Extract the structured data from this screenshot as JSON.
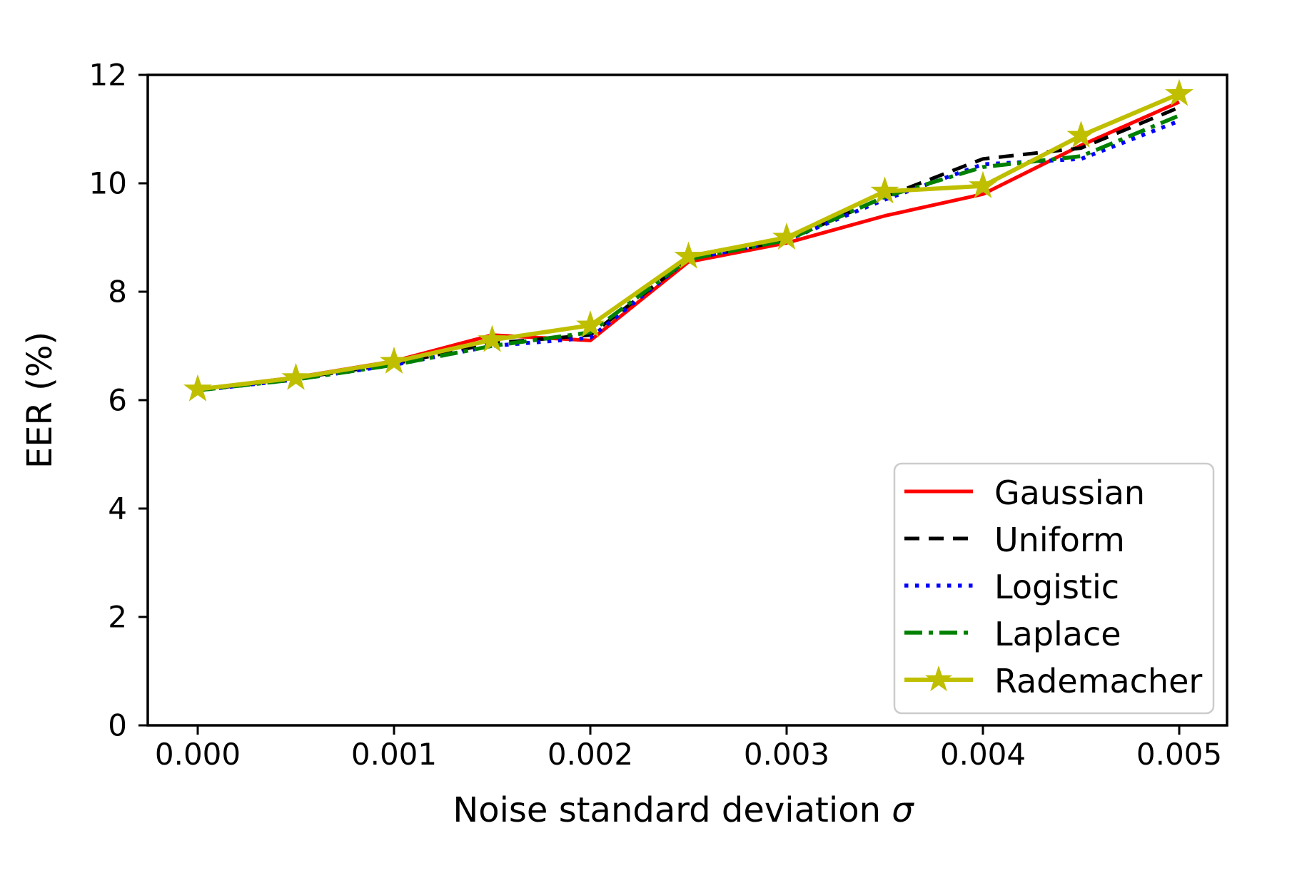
{
  "figure": {
    "background": "#ffffff",
    "frame_color": "#000000"
  },
  "chart_data": {
    "type": "line",
    "xlabel": "Noise standard deviation σ",
    "xlabel_main": "Noise standard deviation ",
    "xlabel_symbol": "σ",
    "ylabel": "EER (%)",
    "grid": false,
    "legend_position": "lower right",
    "xlim": [
      -0.00025,
      0.00525
    ],
    "ylim": [
      0,
      12
    ],
    "xticks": {
      "values": [
        0.0,
        0.001,
        0.002,
        0.003,
        0.004,
        0.005
      ],
      "labels": [
        "0.000",
        "0.001",
        "0.002",
        "0.003",
        "0.004",
        "0.005"
      ]
    },
    "yticks": {
      "values": [
        0,
        2,
        4,
        6,
        8,
        10,
        12
      ],
      "labels": [
        "0",
        "2",
        "4",
        "6",
        "8",
        "10",
        "12"
      ]
    },
    "x": [
      0.0,
      0.0005,
      0.001,
      0.0015,
      0.002,
      0.0025,
      0.003,
      0.0035,
      0.004,
      0.0045,
      0.005
    ],
    "series": [
      {
        "name": "Gaussian",
        "color": "#ff0000",
        "line_style": "solid",
        "line_width": 5,
        "marker": "none",
        "values": [
          6.2,
          6.42,
          6.72,
          7.2,
          7.1,
          8.55,
          8.9,
          9.4,
          9.8,
          10.7,
          11.5
        ]
      },
      {
        "name": "Uniform",
        "color": "#000000",
        "line_style": "dashed",
        "line_width": 5,
        "marker": "none",
        "values": [
          6.18,
          6.4,
          6.67,
          7.05,
          7.2,
          8.6,
          8.95,
          9.75,
          10.45,
          10.65,
          11.4
        ]
      },
      {
        "name": "Logistic",
        "color": "#0000ff",
        "line_style": "dotted",
        "line_width": 5.5,
        "marker": "none",
        "values": [
          6.18,
          6.38,
          6.65,
          7.0,
          7.15,
          8.6,
          8.95,
          9.7,
          10.35,
          10.45,
          11.15
        ]
      },
      {
        "name": "Laplace",
        "color": "#008000",
        "line_style": "dashdot",
        "line_width": 5.5,
        "marker": "none",
        "values": [
          6.18,
          6.38,
          6.65,
          7.0,
          7.25,
          8.6,
          8.95,
          9.75,
          10.3,
          10.5,
          11.25
        ]
      },
      {
        "name": "Rademacher",
        "color": "#bfbf00",
        "line_style": "solid",
        "line_width": 6,
        "marker": "star",
        "values": [
          6.2,
          6.41,
          6.71,
          7.11,
          7.38,
          8.65,
          9.0,
          9.85,
          9.95,
          10.88,
          11.65
        ]
      }
    ]
  }
}
